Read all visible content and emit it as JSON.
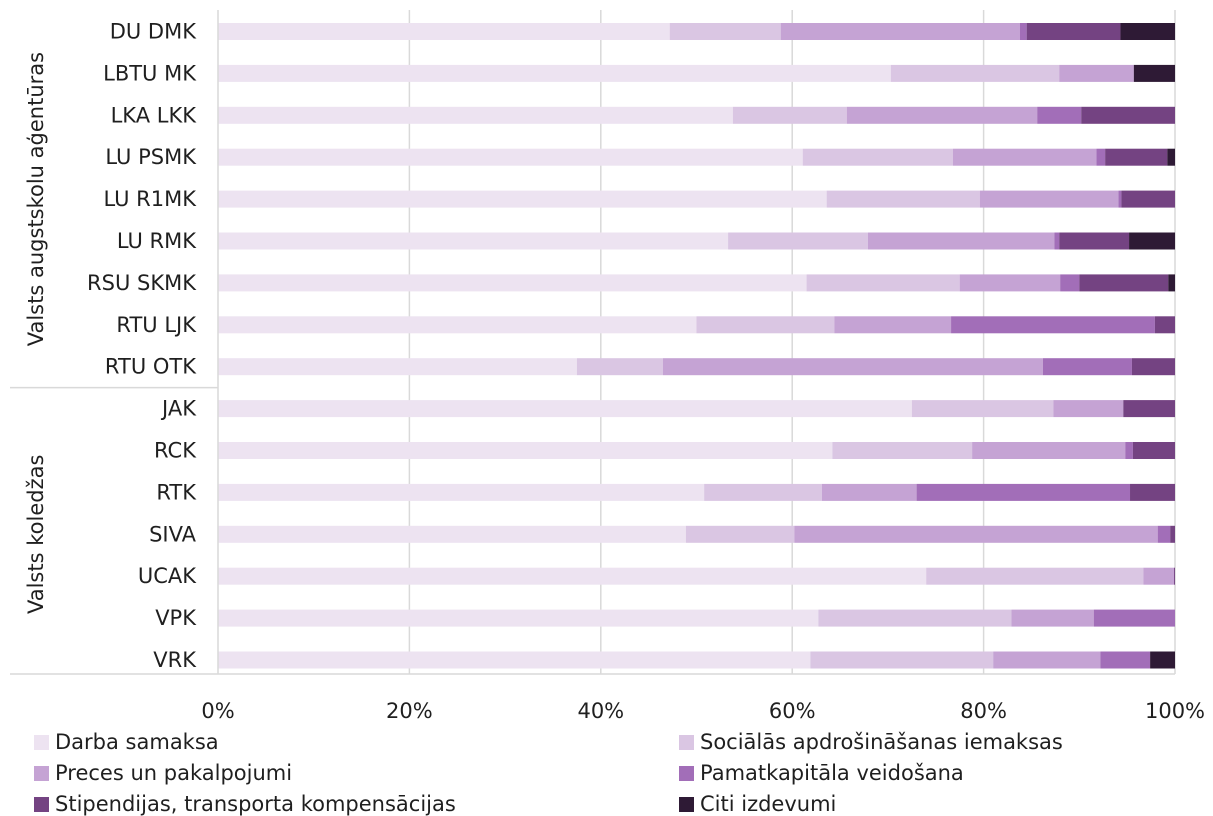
{
  "chart_data": {
    "type": "bar",
    "orientation": "horizontal",
    "stacked": "percent",
    "groups": [
      {
        "label": "Valsts augstskolu aģentūras",
        "categories": [
          "DU DMK",
          "LBTU MK",
          "LKA LKK",
          "LU PSMK",
          "LU R1MK",
          "LU RMK",
          "RSU SKMK",
          "RTU LJK",
          "RTU OTK"
        ]
      },
      {
        "label": "Valsts koledžas",
        "categories": [
          "JAK",
          "RCK",
          "RTK",
          "SIVA",
          "UCAK",
          "VPK",
          "VRK"
        ]
      }
    ],
    "categories": [
      "DU DMK",
      "LBTU MK",
      "LKA LKK",
      "LU PSMK",
      "LU R1MK",
      "LU RMK",
      "RSU SKMK",
      "RTU LJK",
      "RTU OTK",
      "JAK",
      "RCK",
      "RTK",
      "SIVA",
      "UCAK",
      "VPK",
      "VRK"
    ],
    "series": [
      {
        "name": "Darba samaksa",
        "color": "#ede3f1",
        "values": [
          47.2,
          70.3,
          53.8,
          61.1,
          63.6,
          53.3,
          61.5,
          50.0,
          37.5,
          72.5,
          64.2,
          50.8,
          48.7,
          74.0,
          62.8,
          61.9
        ]
      },
      {
        "name": "Sociālās apdrošināšanas iemaksas",
        "color": "#dac6e3",
        "values": [
          11.6,
          17.6,
          11.9,
          15.7,
          16.0,
          14.6,
          16.0,
          14.4,
          9.0,
          14.8,
          14.6,
          12.3,
          11.3,
          22.7,
          20.2,
          19.1
        ]
      },
      {
        "name": "Preces un pakalpojumi",
        "color": "#c5a3d4",
        "values": [
          25.0,
          7.8,
          19.9,
          15.0,
          14.5,
          19.5,
          10.5,
          12.2,
          39.7,
          7.3,
          16.0,
          9.9,
          37.8,
          3.2,
          8.6,
          11.2
        ]
      },
      {
        "name": "Pamatkapitāla veidošana",
        "color": "#a26eb8",
        "values": [
          0.7,
          0.0,
          4.6,
          0.9,
          0.3,
          0.5,
          2.0,
          21.3,
          9.3,
          0.0,
          0.8,
          22.3,
          1.3,
          0.0,
          8.5,
          5.2
        ]
      },
      {
        "name": "Stipendijas, transporta kompensācijas",
        "color": "#744382",
        "values": [
          9.8,
          0.0,
          9.8,
          6.5,
          5.6,
          7.3,
          9.3,
          2.1,
          4.5,
          5.4,
          4.4,
          4.7,
          0.5,
          0.1,
          0.0,
          0.0
        ]
      },
      {
        "name": "Citi izdevumi",
        "color": "#2e1a35",
        "values": [
          5.7,
          4.3,
          0.0,
          0.8,
          0.0,
          4.8,
          0.7,
          0.0,
          0.0,
          0.0,
          0.0,
          0.0,
          0.0,
          0.0,
          0.0,
          2.6
        ]
      }
    ],
    "x_ticks": [
      "0%",
      "20%",
      "40%",
      "60%",
      "80%",
      "100%"
    ],
    "xlim": [
      0,
      100
    ],
    "grid": true,
    "legend_position": "bottom",
    "title": "",
    "xlabel": "",
    "ylabel": ""
  }
}
